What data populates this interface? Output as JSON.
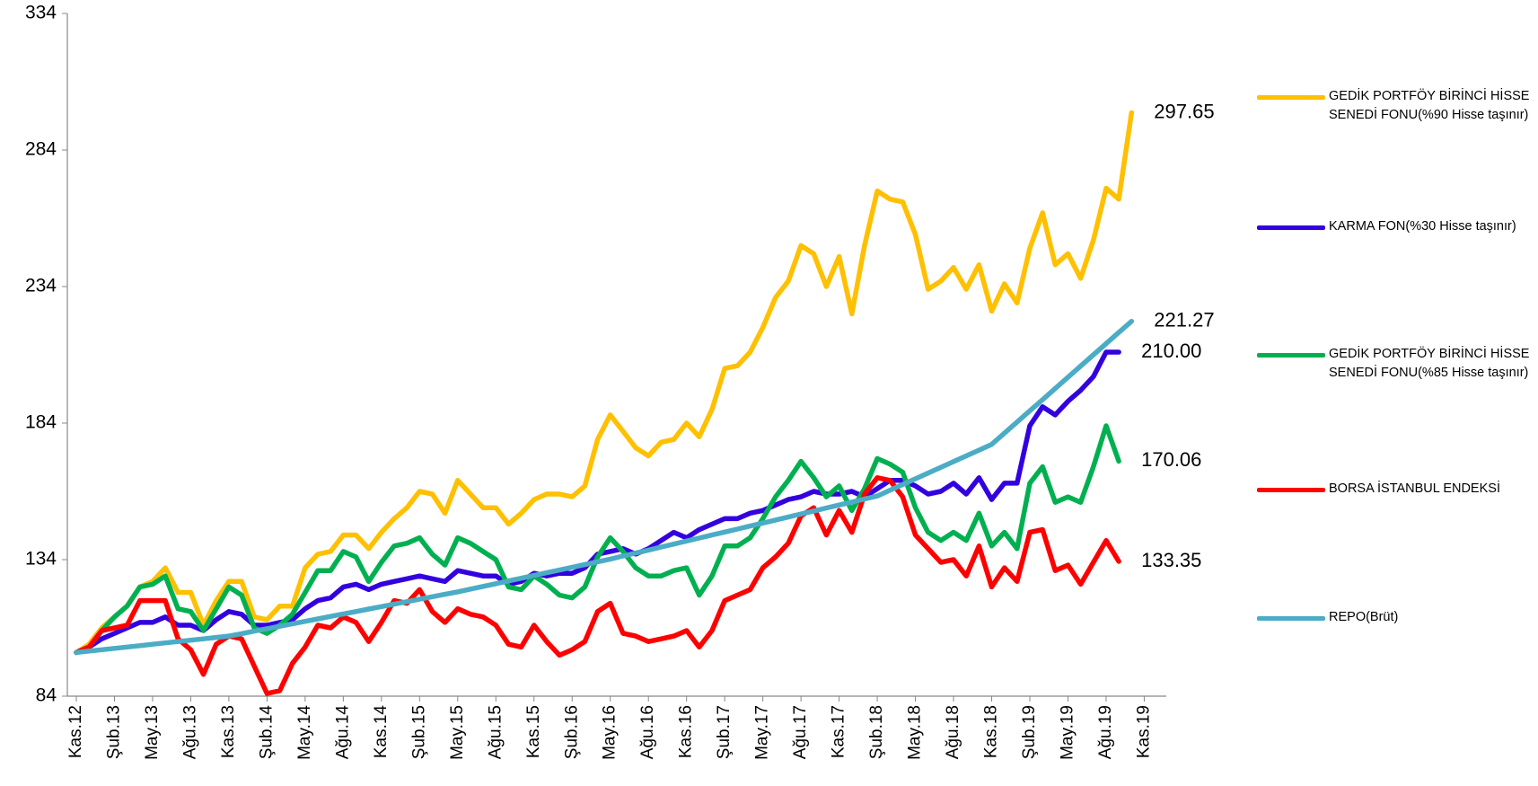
{
  "chart_data": {
    "type": "line",
    "categories": [
      "Kas.12",
      null,
      null,
      "Şub.13",
      null,
      null,
      "May.13",
      null,
      null,
      "Ağu.13",
      null,
      null,
      "Kas.13",
      null,
      null,
      "Şub.14",
      null,
      null,
      "May.14",
      null,
      null,
      "Ağu.14",
      null,
      null,
      "Kas.14",
      null,
      null,
      "Şub.15",
      null,
      null,
      "May.15",
      null,
      null,
      "Ağu.15",
      null,
      null,
      "Kas.15",
      null,
      null,
      "Şub.16",
      null,
      null,
      "May.16",
      null,
      null,
      "Ağu.16",
      null,
      null,
      "Kas.16",
      null,
      null,
      "Şub.17",
      null,
      null,
      "May.17",
      null,
      null,
      "Ağu.17",
      null,
      null,
      "Kas.17",
      null,
      null,
      "Şub.18",
      null,
      null,
      "May.18",
      null,
      null,
      "Ağu.18",
      null,
      null,
      "Kas.18",
      null,
      null,
      "Şub.19",
      null,
      null,
      "May.19",
      null,
      null,
      "Ağu.19",
      null,
      null,
      "Kas.19"
    ],
    "series": [
      {
        "name": "GEDİK PORTFÖY BİRİNCİ HİSSE SENEDİ FONU(%90 Hisse taşınır)",
        "color": "#FFC000",
        "values": [
          100,
          103,
          109,
          113,
          117,
          124,
          126,
          131,
          122,
          122,
          110,
          119,
          126,
          126,
          113,
          112,
          117,
          117,
          131,
          136,
          137,
          143,
          143,
          138,
          144,
          149,
          153,
          159,
          158,
          151,
          163,
          158,
          153,
          153,
          147,
          151,
          156,
          158,
          158,
          157,
          161,
          178,
          187,
          181,
          175,
          172,
          177,
          178,
          184,
          179,
          189,
          204,
          205,
          210,
          219,
          230,
          236,
          249,
          246,
          234,
          245,
          224,
          249,
          269,
          266,
          265,
          253,
          233,
          236,
          241,
          233,
          242,
          225,
          235,
          228,
          248,
          261,
          242,
          246,
          237,
          251,
          270,
          266,
          297.65,
          null
        ],
        "value_labels": [
          null,
          null,
          null,
          null,
          null,
          null,
          null,
          null,
          null,
          null,
          null,
          null,
          null,
          null,
          null,
          null,
          null,
          null,
          null,
          null,
          null,
          null,
          null,
          null,
          null,
          null,
          null,
          null,
          null,
          null,
          null,
          null,
          null,
          null,
          null,
          null,
          null,
          null,
          null,
          null,
          null,
          null,
          null,
          null,
          null,
          null,
          null,
          null,
          null,
          null,
          null,
          null,
          null,
          null,
          null,
          null,
          null,
          null,
          null,
          null,
          null,
          null,
          null,
          null,
          null,
          null,
          null,
          null,
          null,
          null,
          null,
          null,
          null,
          null,
          null,
          null,
          null,
          null,
          null,
          null,
          null,
          null,
          null,
          "297.65",
          null
        ]
      },
      {
        "name": "KARMA FON(%30 Hisse taşınır)",
        "color": "#3300E0",
        "values": [
          100,
          102,
          105,
          107,
          109,
          111,
          111,
          113,
          110,
          110,
          108,
          112,
          115,
          114,
          110,
          110,
          111,
          112,
          116,
          119,
          120,
          124,
          125,
          123,
          125,
          126,
          127,
          128,
          127,
          126,
          130,
          129,
          128,
          128,
          125,
          126,
          129,
          128,
          129,
          129,
          131,
          136,
          137,
          138,
          136,
          138,
          141,
          144,
          142,
          145,
          147,
          149,
          149,
          151,
          152,
          154,
          156,
          157,
          159,
          158,
          158,
          159,
          157,
          160,
          163,
          163,
          161,
          158,
          159,
          162,
          158,
          164,
          156,
          162,
          162,
          183,
          190,
          187,
          192,
          196,
          201,
          210,
          210,
          null,
          null
        ],
        "value_labels": [
          null,
          null,
          null,
          null,
          null,
          null,
          null,
          null,
          null,
          null,
          null,
          null,
          null,
          null,
          null,
          null,
          null,
          null,
          null,
          null,
          null,
          null,
          null,
          null,
          null,
          null,
          null,
          null,
          null,
          null,
          null,
          null,
          null,
          null,
          null,
          null,
          null,
          null,
          null,
          null,
          null,
          null,
          null,
          null,
          null,
          null,
          null,
          null,
          null,
          null,
          null,
          null,
          null,
          null,
          null,
          null,
          null,
          null,
          null,
          null,
          null,
          null,
          null,
          null,
          null,
          null,
          null,
          null,
          null,
          null,
          null,
          null,
          null,
          null,
          null,
          null,
          null,
          null,
          null,
          null,
          null,
          null,
          "210.00",
          null,
          null
        ]
      },
      {
        "name": "GEDİK PORTFÖY BİRİNCİ HİSSE SENEDİ FONU(%85 Hisse taşınır)",
        "color": "#00B050",
        "values": [
          100,
          102,
          108,
          113,
          117,
          124,
          125,
          128,
          116,
          115,
          108,
          116,
          124,
          121,
          109,
          107,
          110,
          114,
          122,
          130,
          130,
          137,
          135,
          126,
          133,
          139,
          140,
          142,
          136,
          132,
          142,
          140,
          137,
          134,
          124,
          123,
          128,
          125,
          121,
          120,
          124,
          135,
          142,
          137,
          131,
          128,
          128,
          130,
          131,
          121,
          128,
          139,
          139,
          142,
          149,
          157,
          163,
          170,
          164,
          157,
          161,
          152,
          160,
          171,
          169,
          166,
          153,
          144,
          141,
          144,
          141,
          151,
          139,
          144,
          138,
          162,
          168,
          155,
          157,
          155,
          168,
          183,
          170.06,
          null,
          null
        ],
        "value_labels": [
          null,
          null,
          null,
          null,
          null,
          null,
          null,
          null,
          null,
          null,
          null,
          null,
          null,
          null,
          null,
          null,
          null,
          null,
          null,
          null,
          null,
          null,
          null,
          null,
          null,
          null,
          null,
          null,
          null,
          null,
          null,
          null,
          null,
          null,
          null,
          null,
          null,
          null,
          null,
          null,
          null,
          null,
          null,
          null,
          null,
          null,
          null,
          null,
          null,
          null,
          null,
          null,
          null,
          null,
          null,
          null,
          null,
          null,
          null,
          null,
          null,
          null,
          null,
          null,
          null,
          null,
          null,
          null,
          null,
          null,
          null,
          null,
          null,
          null,
          null,
          null,
          null,
          null,
          null,
          null,
          null,
          null,
          "170.06",
          null,
          null
        ]
      },
      {
        "name": "BORSA İSTANBUL ENDEKSİ",
        "color": "#FF0000",
        "values": [
          100,
          102,
          108,
          109,
          110,
          119,
          119,
          119,
          105,
          101,
          92,
          103,
          106,
          105,
          95,
          85,
          86,
          96,
          102,
          110,
          109,
          113,
          111,
          104,
          111,
          119,
          118,
          123,
          115,
          111,
          116,
          114,
          113,
          110,
          103,
          102,
          110,
          104,
          99,
          101,
          104,
          115,
          118,
          107,
          106,
          104,
          105,
          106,
          108,
          102,
          108,
          119,
          121,
          123,
          131,
          135,
          140,
          150,
          153,
          143,
          152,
          144,
          158,
          164,
          163,
          157,
          143,
          138,
          133,
          134,
          128,
          139,
          124,
          131,
          126,
          144,
          145,
          130,
          132,
          125,
          133,
          141,
          133.35,
          null,
          null
        ],
        "value_labels": [
          null,
          null,
          null,
          null,
          null,
          null,
          null,
          null,
          null,
          null,
          null,
          null,
          null,
          null,
          null,
          null,
          null,
          null,
          null,
          null,
          null,
          null,
          null,
          null,
          null,
          null,
          null,
          null,
          null,
          null,
          null,
          null,
          null,
          null,
          null,
          null,
          null,
          null,
          null,
          null,
          null,
          null,
          null,
          null,
          null,
          null,
          null,
          null,
          null,
          null,
          null,
          null,
          null,
          null,
          null,
          null,
          null,
          null,
          null,
          null,
          null,
          null,
          null,
          null,
          null,
          null,
          null,
          null,
          null,
          null,
          null,
          null,
          null,
          null,
          null,
          null,
          null,
          null,
          null,
          null,
          null,
          null,
          "133.35",
          null,
          null
        ]
      },
      {
        "name": "REPO(Brüt)",
        "color": "#4BACC6",
        "values": [
          100,
          100.5,
          101,
          101.5,
          102,
          102.5,
          103,
          103.5,
          104,
          104.5,
          105,
          105.5,
          106,
          106.9,
          107.8,
          108.7,
          109.6,
          110.5,
          111.4,
          112.3,
          113.2,
          114.1,
          115,
          115.9,
          116.8,
          117.7,
          118.6,
          119.5,
          120.4,
          121.3,
          122.2,
          123.2,
          124.2,
          125.2,
          126.2,
          127.2,
          128.2,
          129.2,
          130.2,
          131.2,
          132.2,
          133.2,
          134.2,
          135.3,
          136.4,
          137.5,
          138.6,
          139.7,
          140.8,
          141.9,
          143,
          144.1,
          145.2,
          146.3,
          147.4,
          148.5,
          149.6,
          150.7,
          151.8,
          152.9,
          154,
          155.1,
          156.2,
          157.3,
          159.4,
          161.5,
          163.6,
          165.7,
          167.8,
          169.9,
          172,
          174.1,
          176.2,
          180.3,
          184.4,
          188.5,
          192.6,
          196.7,
          200.8,
          204.9,
          209,
          213.1,
          217.2,
          221.27,
          null
        ],
        "value_labels": [
          null,
          null,
          null,
          null,
          null,
          null,
          null,
          null,
          null,
          null,
          null,
          null,
          null,
          null,
          null,
          null,
          null,
          null,
          null,
          null,
          null,
          null,
          null,
          null,
          null,
          null,
          null,
          null,
          null,
          null,
          null,
          null,
          null,
          null,
          null,
          null,
          null,
          null,
          null,
          null,
          null,
          null,
          null,
          null,
          null,
          null,
          null,
          null,
          null,
          null,
          null,
          null,
          null,
          null,
          null,
          null,
          null,
          null,
          null,
          null,
          null,
          null,
          null,
          null,
          null,
          null,
          null,
          null,
          null,
          null,
          null,
          null,
          null,
          null,
          null,
          null,
          null,
          null,
          null,
          null,
          null,
          null,
          null,
          "221.27",
          null
        ]
      }
    ],
    "ylim": [
      84,
      334
    ],
    "yticks": [
      84,
      134,
      184,
      234,
      284,
      334
    ],
    "grid": false,
    "legend": "right"
  }
}
